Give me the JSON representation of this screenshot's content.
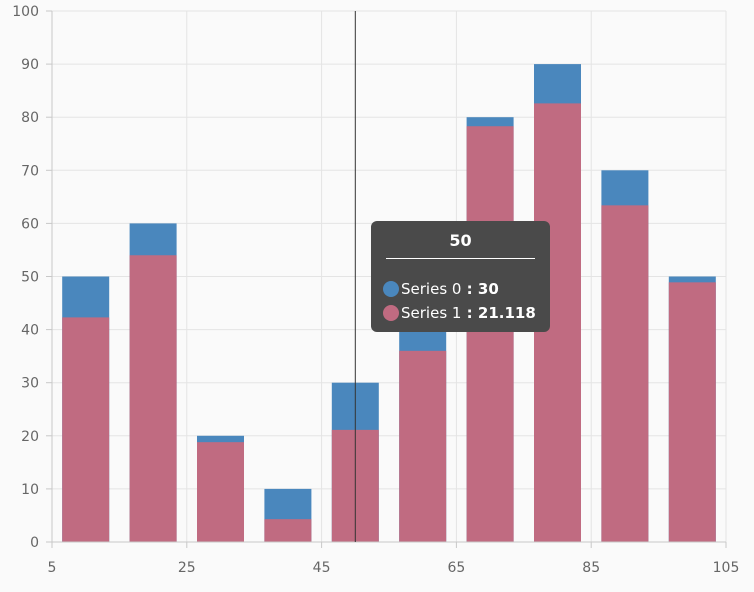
{
  "chart_data": {
    "type": "bar",
    "title": "",
    "xlabel": "",
    "ylabel": "",
    "xlim": [
      5,
      105
    ],
    "ylim": [
      0,
      100
    ],
    "x_ticks": [
      5,
      25,
      45,
      65,
      85,
      105
    ],
    "y_ticks": [
      0,
      10,
      20,
      30,
      40,
      50,
      60,
      70,
      80,
      90,
      100
    ],
    "x": [
      10,
      20,
      30,
      40,
      50,
      60,
      70,
      80,
      90,
      100
    ],
    "grid": true,
    "series": [
      {
        "values": [
          50,
          60,
          20,
          10,
          30,
          45,
          80,
          90,
          70,
          50
        ],
        "color": "#4a87bd"
      },
      {
        "values": [
          42.3,
          54,
          18.8,
          4.3,
          21.118,
          36,
          78.3,
          82.6,
          63.4,
          48.9
        ],
        "color": "#c06b81"
      }
    ],
    "crosshair_x": 50,
    "tooltip": {
      "header": "50",
      "rows": [
        {
          "name": "Series 0",
          "value": "30",
          "color": "#4a87bd"
        },
        {
          "name": "Series 1",
          "value": "21.118",
          "color": "#c06b81"
        }
      ]
    }
  }
}
